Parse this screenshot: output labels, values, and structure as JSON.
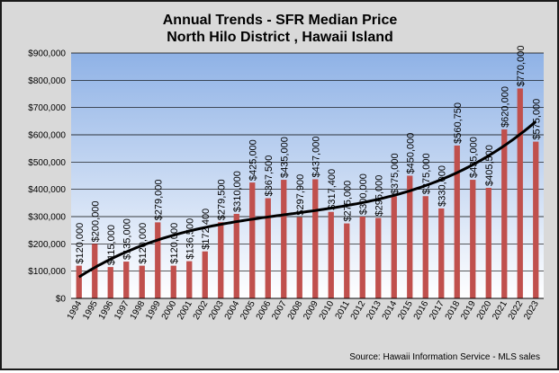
{
  "chart_data": {
    "type": "bar",
    "title": "Annual Trends - SFR Median Price",
    "subtitle": "North Hilo District , Hawaii Island",
    "source": "Source:  Hawaii Information Service - MLS sales",
    "categories": [
      "1994",
      "1995",
      "1996",
      "1997",
      "1998",
      "1999",
      "2000",
      "2001",
      "2002",
      "2003",
      "2004",
      "2005",
      "2006",
      "2007",
      "2008",
      "2009",
      "2010",
      "2011",
      "2012",
      "2013",
      "2014",
      "2015",
      "2016",
      "2017",
      "2018",
      "2019",
      "2020",
      "2021",
      "2022",
      "2023"
    ],
    "values": [
      120000,
      200000,
      115000,
      135000,
      120000,
      279000,
      120000,
      136500,
      172400,
      279500,
      310000,
      425000,
      367500,
      435000,
      297900,
      437000,
      317400,
      275000,
      300000,
      295000,
      375000,
      450000,
      375000,
      330000,
      560750,
      435000,
      405500,
      620000,
      770000,
      575000
    ],
    "value_labels": [
      "$120,000",
      "$200,000",
      "$115,000",
      "$135,000",
      "$120,000",
      "$279,000",
      "$120,000",
      "$136,500",
      "$172,400",
      "$279,500",
      "$310,000",
      "$425,000",
      "$367,500",
      "$435,000",
      "$297,900",
      "$437,000",
      "$317,400",
      "$275,000",
      "$300,000",
      "$295,000",
      "$375,000",
      "$450,000",
      "$375,000",
      "$330,000",
      "$560,750",
      "$435,000",
      "$405,500",
      "$620,000",
      "$770,000",
      "$575,000"
    ],
    "ylim": [
      0,
      900000
    ],
    "yticks": [
      "$0",
      "$100,000",
      "$200,000",
      "$300,000",
      "$400,000",
      "$500,000",
      "$600,000",
      "$700,000",
      "$800,000",
      "$900,000"
    ],
    "grid": true,
    "trendline": {
      "type": "polynomial"
    },
    "colors": {
      "bar": "#c0504d",
      "trend": "#000000",
      "plot_top": "#8fb2e6",
      "plot_bottom": "#ffffff"
    }
  }
}
